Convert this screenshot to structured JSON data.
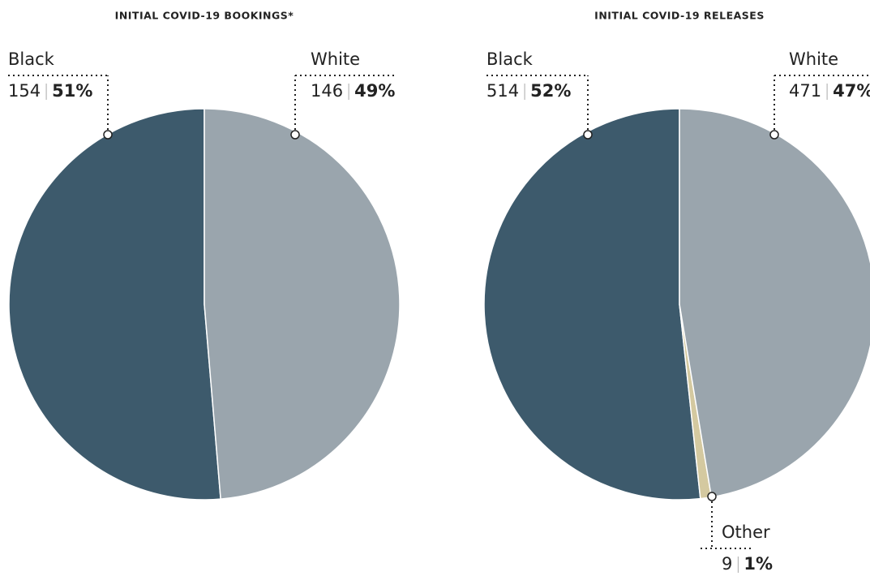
{
  "chart_data": [
    {
      "type": "pie",
      "title": "INITIAL COVID-19 BOOKINGS*",
      "categories": [
        "Black",
        "White"
      ],
      "values": [
        154,
        146
      ],
      "percent_labels": [
        "51%",
        "49%"
      ],
      "colors": [
        "#3d5a6c",
        "#9aa5ad"
      ]
    },
    {
      "type": "pie",
      "title": "INITIAL COVID-19 RELEASES",
      "categories": [
        "Black",
        "Other",
        "White"
      ],
      "values": [
        514,
        9,
        471
      ],
      "percent_labels": [
        "52%",
        "1%",
        "47%"
      ],
      "colors": [
        "#3d5a6c",
        "#d4c9a0",
        "#9aa5ad"
      ]
    }
  ]
}
